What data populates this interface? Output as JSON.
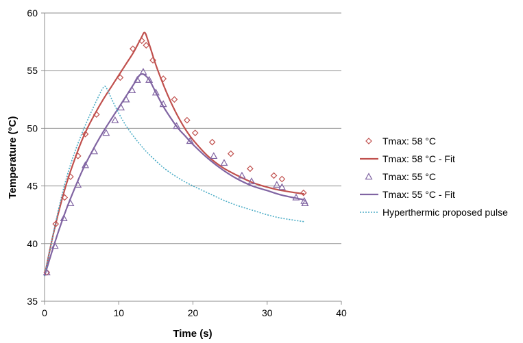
{
  "chart_data": {
    "type": "scatter",
    "xlabel": "Time (s)",
    "ylabel": "Temperature (°C)",
    "xlim": [
      0,
      40
    ],
    "ylim": [
      35,
      60
    ],
    "xticks": [
      0,
      10,
      20,
      30,
      40
    ],
    "yticks": [
      35,
      40,
      45,
      50,
      55,
      60
    ],
    "grid": "horizontal",
    "legend_position": "right",
    "series": [
      {
        "name": "Tmax: 58 °C",
        "kind": "markers",
        "marker": "diamond",
        "color": "#C0504D",
        "x": [
          0.3,
          1.5,
          2.7,
          3.5,
          4.5,
          5.5,
          7.0,
          10.2,
          11.9,
          13.1,
          13.7,
          14.6,
          16.0,
          17.5,
          19.2,
          20.3,
          22.6,
          25.1,
          27.7,
          30.9,
          32.0,
          34.9
        ],
        "y": [
          37.5,
          41.7,
          44.0,
          45.8,
          47.6,
          49.5,
          51.2,
          54.4,
          56.9,
          57.6,
          57.2,
          55.9,
          54.3,
          52.5,
          50.7,
          49.6,
          48.8,
          47.8,
          46.5,
          45.9,
          45.6,
          44.4
        ]
      },
      {
        "name": "Tmax: 58 °C - Fit",
        "kind": "line",
        "color": "#C0504D",
        "x": [
          0,
          1,
          2,
          3,
          4,
          5,
          6,
          7,
          8,
          9,
          10,
          11,
          12,
          13,
          13.5,
          14,
          15,
          16,
          17,
          18,
          19,
          20,
          22,
          24,
          26,
          28,
          30,
          32,
          35
        ],
        "y": [
          37.2,
          40.3,
          43.0,
          45.3,
          47.2,
          48.9,
          50.3,
          51.5,
          52.6,
          53.6,
          54.6,
          55.6,
          56.6,
          57.8,
          58.3,
          57.5,
          55.5,
          53.8,
          52.3,
          51.0,
          49.9,
          49.0,
          47.6,
          46.6,
          45.9,
          45.3,
          44.9,
          44.6,
          44.3
        ]
      },
      {
        "name": "Tmax: 55 °C",
        "kind": "markers",
        "marker": "triangle",
        "color": "#8064A2",
        "x": [
          0.3,
          1.4,
          2.6,
          3.5,
          4.5,
          5.5,
          6.7,
          8.3,
          9.5,
          10.3,
          11.0,
          11.8,
          12.5,
          13.3,
          14.1,
          15.0,
          16.0,
          17.8,
          19.6,
          22.8,
          24.2,
          26.6,
          27.9,
          31.3,
          32.0,
          33.9,
          35.0,
          35.1
        ],
        "y": [
          37.5,
          39.8,
          42.2,
          43.5,
          45.1,
          46.8,
          48.0,
          49.6,
          50.7,
          51.8,
          52.5,
          53.3,
          54.2,
          54.9,
          54.2,
          53.1,
          52.1,
          50.2,
          48.9,
          47.6,
          47.0,
          45.9,
          45.4,
          45.1,
          44.9,
          44.0,
          43.7,
          43.5
        ]
      },
      {
        "name": "Tmax: 55 °C - Fit",
        "kind": "line",
        "color": "#8064A2",
        "x": [
          0,
          1,
          2,
          3,
          4,
          5,
          6,
          7,
          8,
          9,
          10,
          11,
          12,
          13,
          14,
          15,
          16,
          17,
          18,
          19,
          20,
          22,
          24,
          26,
          28,
          30,
          32,
          35
        ],
        "y": [
          37.2,
          39.3,
          41.3,
          43.1,
          44.7,
          46.2,
          47.5,
          48.7,
          49.8,
          50.8,
          51.8,
          52.8,
          53.8,
          54.7,
          54.3,
          53.1,
          51.9,
          50.9,
          50.0,
          49.3,
          48.6,
          47.4,
          46.4,
          45.6,
          45.0,
          44.6,
          44.2,
          43.8
        ]
      },
      {
        "name": "Hyperthermic proposed pulse",
        "kind": "dotted-line",
        "color": "#4BACC6",
        "x": [
          0,
          1,
          2,
          3,
          4,
          5,
          6,
          7,
          8,
          8.5,
          9,
          10,
          11,
          12,
          13,
          14,
          16,
          18,
          20,
          22,
          24,
          26,
          28,
          30,
          32,
          35
        ],
        "y": [
          37.2,
          40.3,
          43.3,
          45.8,
          47.8,
          49.5,
          51.0,
          52.4,
          53.6,
          53.3,
          52.6,
          51.3,
          50.2,
          49.3,
          48.5,
          47.8,
          46.6,
          45.7,
          45.0,
          44.4,
          43.8,
          43.3,
          42.9,
          42.5,
          42.2,
          41.9
        ]
      }
    ]
  }
}
